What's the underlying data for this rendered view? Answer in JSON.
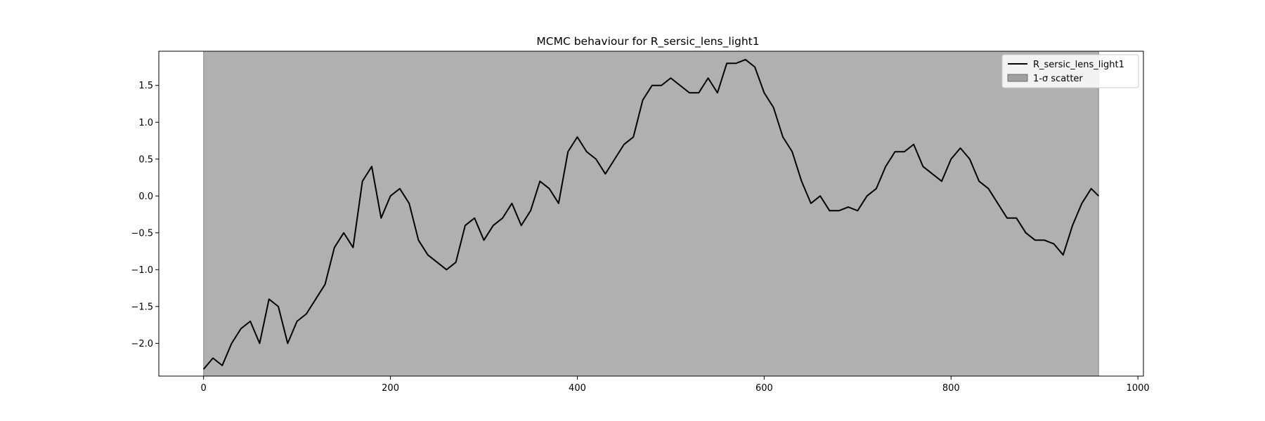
{
  "chart_data": {
    "type": "line",
    "title": "MCMC behaviour for R_sersic_lens_light1",
    "xlabel": "",
    "ylabel": "",
    "xlim": [
      -47.9,
      1005.9
    ],
    "ylim": [
      -2.444,
      1.964
    ],
    "xticks": [
      0,
      200,
      400,
      600,
      800,
      1000
    ],
    "xtick_labels": [
      "0",
      "200",
      "400",
      "600",
      "800",
      "1000"
    ],
    "yticks": [
      -2.0,
      -1.5,
      -1.0,
      -0.5,
      0.0,
      0.5,
      1.0,
      1.5
    ],
    "ytick_labels": [
      "−2.0",
      "−1.5",
      "−1.0",
      "−0.5",
      "0.0",
      "0.5",
      "1.0",
      "1.5"
    ],
    "grid": false,
    "legend_position": "top-right",
    "series": [
      {
        "name": "R_sersic_lens_light1",
        "kind": "line",
        "color": "#000000",
        "x": [
          0,
          10,
          20,
          30,
          40,
          50,
          60,
          70,
          80,
          90,
          100,
          110,
          120,
          130,
          140,
          150,
          160,
          170,
          180,
          190,
          200,
          210,
          220,
          230,
          240,
          250,
          260,
          270,
          280,
          290,
          300,
          310,
          320,
          330,
          340,
          350,
          360,
          370,
          380,
          390,
          400,
          410,
          420,
          430,
          440,
          450,
          460,
          470,
          480,
          490,
          500,
          510,
          520,
          530,
          540,
          550,
          560,
          570,
          580,
          590,
          600,
          610,
          620,
          630,
          640,
          650,
          660,
          670,
          680,
          690,
          700,
          710,
          720,
          730,
          740,
          750,
          760,
          770,
          780,
          790,
          800,
          810,
          820,
          830,
          840,
          850,
          860,
          870,
          880,
          890,
          900,
          910,
          920,
          930,
          940,
          950,
          958
        ],
        "y": [
          -2.35,
          -2.2,
          -2.3,
          -2.0,
          -1.8,
          -1.7,
          -2.0,
          -1.4,
          -1.5,
          -2.0,
          -1.7,
          -1.6,
          -1.4,
          -1.2,
          -0.7,
          -0.5,
          -0.7,
          0.2,
          0.4,
          -0.3,
          0.0,
          0.1,
          -0.1,
          -0.6,
          -0.8,
          -0.9,
          -1.0,
          -0.9,
          -0.4,
          -0.3,
          -0.6,
          -0.4,
          -0.3,
          -0.1,
          -0.4,
          -0.2,
          0.2,
          0.1,
          -0.1,
          0.6,
          0.8,
          0.6,
          0.5,
          0.3,
          0.5,
          0.7,
          0.8,
          1.3,
          1.5,
          1.5,
          1.6,
          1.5,
          1.4,
          1.4,
          1.6,
          1.4,
          1.8,
          1.8,
          1.85,
          1.75,
          1.4,
          1.2,
          0.8,
          0.6,
          0.2,
          -0.1,
          0.0,
          -0.2,
          -0.2,
          -0.15,
          -0.2,
          0.0,
          0.1,
          0.4,
          0.6,
          0.6,
          0.7,
          0.4,
          0.3,
          0.2,
          0.5,
          0.65,
          0.5,
          0.2,
          0.1,
          -0.1,
          -0.3,
          -0.3,
          -0.5,
          -0.6,
          -0.6,
          -0.65,
          -0.8,
          -0.4,
          -0.1,
          0.1,
          0.0
        ]
      },
      {
        "name": "1-σ scatter",
        "kind": "band",
        "color": "#b0b0b0",
        "x": [
          0,
          958
        ],
        "lower": [
          -2.444,
          -2.444
        ],
        "upper": [
          1.964,
          1.964
        ]
      }
    ],
    "legend": [
      {
        "label": "R_sersic_lens_light1",
        "kind": "line"
      },
      {
        "label": "1-σ scatter",
        "kind": "patch"
      }
    ]
  }
}
